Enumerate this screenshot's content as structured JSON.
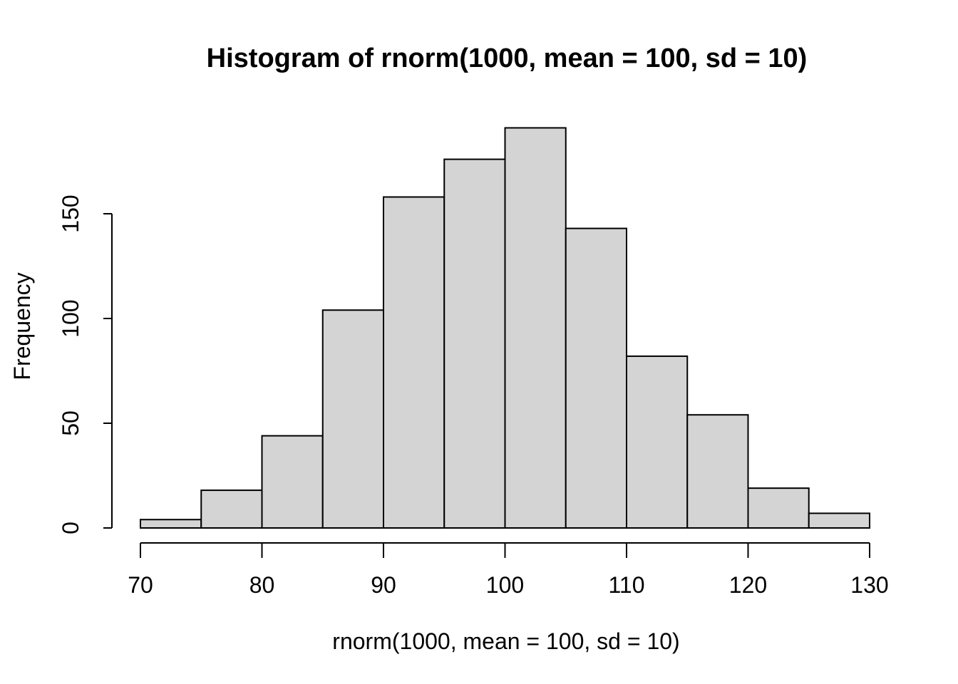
{
  "figure": {
    "title": "Histogram of rnorm(1000, mean = 100, sd = 10)",
    "xlabel": "rnorm(1000, mean = 100, sd = 10)",
    "ylabel": "Frequency"
  },
  "chart_data": {
    "type": "bar",
    "subtype": "histogram",
    "title": "Histogram of rnorm(1000, mean = 100, sd = 10)",
    "xlabel": "rnorm(1000, mean = 100, sd = 10)",
    "ylabel": "Frequency",
    "bin_edges": [
      70,
      75,
      80,
      85,
      90,
      95,
      100,
      105,
      110,
      115,
      120,
      125,
      130
    ],
    "counts": [
      4,
      18,
      44,
      104,
      158,
      176,
      191,
      143,
      82,
      54,
      19,
      7
    ],
    "x_ticks": [
      70,
      80,
      90,
      100,
      110,
      120,
      130
    ],
    "y_ticks": [
      0,
      50,
      100,
      150
    ],
    "xlim": [
      70,
      130
    ],
    "ylim": [
      0,
      191
    ],
    "y_axis_range_drawn": [
      0,
      150
    ],
    "grid": false,
    "legend": null,
    "bar_fill": "#d4d4d4",
    "bar_stroke": "#000000",
    "axis_color": "#000000",
    "text_color": "#000000",
    "background": "#ffffff"
  }
}
